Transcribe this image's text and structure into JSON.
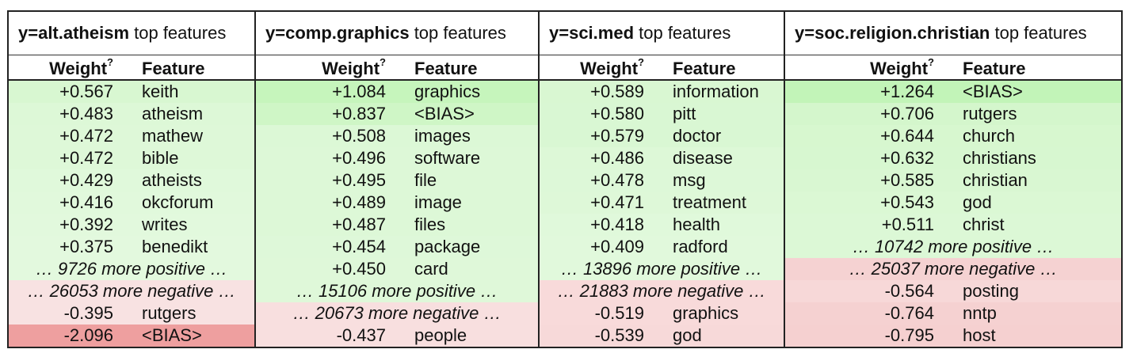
{
  "panels": [
    {
      "title_label": "y=alt.atheism",
      "title_suffix": " top features",
      "header": {
        "weight": "Weight",
        "help": "?",
        "feature": "Feature"
      },
      "rows": [
        {
          "type": "pos",
          "weight": "+0.567",
          "feature": "keith",
          "bg": "#d8f7d1"
        },
        {
          "type": "pos",
          "weight": "+0.483",
          "feature": "atheism",
          "bg": "#ddf8d7"
        },
        {
          "type": "pos",
          "weight": "+0.472",
          "feature": "mathew",
          "bg": "#def8d8"
        },
        {
          "type": "pos",
          "weight": "+0.472",
          "feature": "bible",
          "bg": "#def8d8"
        },
        {
          "type": "pos",
          "weight": "+0.429",
          "feature": "atheists",
          "bg": "#e0f9db"
        },
        {
          "type": "pos",
          "weight": "+0.416",
          "feature": "okcforum",
          "bg": "#e1f9dc"
        },
        {
          "type": "pos",
          "weight": "+0.392",
          "feature": "writes",
          "bg": "#e2f9dd"
        },
        {
          "type": "pos",
          "weight": "+0.375",
          "feature": "benedikt",
          "bg": "#e3f9de"
        },
        {
          "type": "more",
          "text": "… 9726 more positive …",
          "bg": "#e3f9de"
        },
        {
          "type": "more",
          "text": "… 26053 more negative …",
          "bg": "#f8e2e2"
        },
        {
          "type": "neg",
          "weight": "-0.395",
          "feature": "rutgers",
          "bg": "#f8e2e2"
        },
        {
          "type": "neg",
          "weight": "-2.096",
          "feature": "<BIAS>",
          "bg": "#ee9f9f"
        }
      ]
    },
    {
      "title_label": "y=comp.graphics",
      "title_suffix": " top features",
      "header": {
        "weight": "Weight",
        "help": "?",
        "feature": "Feature"
      },
      "rows": [
        {
          "type": "pos",
          "weight": "+1.084",
          "feature": "graphics",
          "bg": "#c6f5bc"
        },
        {
          "type": "pos",
          "weight": "+0.837",
          "feature": "<BIAS>",
          "bg": "#cff6c6"
        },
        {
          "type": "pos",
          "weight": "+0.508",
          "feature": "images",
          "bg": "#dcf8d6"
        },
        {
          "type": "pos",
          "weight": "+0.496",
          "feature": "software",
          "bg": "#ddf8d7"
        },
        {
          "type": "pos",
          "weight": "+0.495",
          "feature": "file",
          "bg": "#ddf8d7"
        },
        {
          "type": "pos",
          "weight": "+0.489",
          "feature": "image",
          "bg": "#ddf8d7"
        },
        {
          "type": "pos",
          "weight": "+0.487",
          "feature": "files",
          "bg": "#ddf8d7"
        },
        {
          "type": "pos",
          "weight": "+0.454",
          "feature": "package",
          "bg": "#def8d9"
        },
        {
          "type": "pos",
          "weight": "+0.450",
          "feature": "card",
          "bg": "#dff8d9"
        },
        {
          "type": "more",
          "text": "… 15106 more positive …",
          "bg": "#dff8d9"
        },
        {
          "type": "more",
          "text": "… 20673 more negative …",
          "bg": "#f8dfdf"
        },
        {
          "type": "neg",
          "weight": "-0.437",
          "feature": "people",
          "bg": "#f8dfdf"
        }
      ]
    },
    {
      "title_label": "y=sci.med",
      "title_suffix": " top features",
      "header": {
        "weight": "Weight",
        "help": "?",
        "feature": "Feature"
      },
      "rows": [
        {
          "type": "pos",
          "weight": "+0.589",
          "feature": "information",
          "bg": "#d9f7d2"
        },
        {
          "type": "pos",
          "weight": "+0.580",
          "feature": "pitt",
          "bg": "#d9f7d3"
        },
        {
          "type": "pos",
          "weight": "+0.579",
          "feature": "doctor",
          "bg": "#d9f7d3"
        },
        {
          "type": "pos",
          "weight": "+0.486",
          "feature": "disease",
          "bg": "#ddf8d7"
        },
        {
          "type": "pos",
          "weight": "+0.478",
          "feature": "msg",
          "bg": "#ddf8d8"
        },
        {
          "type": "pos",
          "weight": "+0.471",
          "feature": "treatment",
          "bg": "#def8d8"
        },
        {
          "type": "pos",
          "weight": "+0.418",
          "feature": "health",
          "bg": "#e0f9db"
        },
        {
          "type": "pos",
          "weight": "+0.409",
          "feature": "radford",
          "bg": "#e1f9dc"
        },
        {
          "type": "more",
          "text": "… 13896 more positive …",
          "bg": "#e1f9dc"
        },
        {
          "type": "more",
          "text": "… 21883 more negative …",
          "bg": "#f8dada"
        },
        {
          "type": "neg",
          "weight": "-0.519",
          "feature": "graphics",
          "bg": "#f8dada"
        },
        {
          "type": "neg",
          "weight": "-0.539",
          "feature": "god",
          "bg": "#f7d9d9"
        }
      ]
    },
    {
      "title_label": "y=soc.religion.christian",
      "title_suffix": " top features",
      "header": {
        "weight": "Weight",
        "help": "?",
        "feature": "Feature"
      },
      "rows": [
        {
          "type": "pos",
          "weight": "+1.264",
          "feature": "<BIAS>",
          "bg": "#c2f4b8"
        },
        {
          "type": "pos",
          "weight": "+0.706",
          "feature": "rutgers",
          "bg": "#d4f6cc"
        },
        {
          "type": "pos",
          "weight": "+0.644",
          "feature": "church",
          "bg": "#d7f7cf"
        },
        {
          "type": "pos",
          "weight": "+0.632",
          "feature": "christians",
          "bg": "#d7f7d0"
        },
        {
          "type": "pos",
          "weight": "+0.585",
          "feature": "christian",
          "bg": "#d9f7d2"
        },
        {
          "type": "pos",
          "weight": "+0.543",
          "feature": "god",
          "bg": "#dbf8d4"
        },
        {
          "type": "pos",
          "weight": "+0.511",
          "feature": "christ",
          "bg": "#dcf8d6"
        },
        {
          "type": "more",
          "text": "… 10742 more positive …",
          "bg": "#dcf8d6"
        },
        {
          "type": "more",
          "text": "… 25037 more negative …",
          "bg": "#f5d2d2"
        },
        {
          "type": "neg",
          "weight": "-0.564",
          "feature": "posting",
          "bg": "#f7d8d8"
        },
        {
          "type": "neg",
          "weight": "-0.764",
          "feature": "nntp",
          "bg": "#f5d1d1"
        },
        {
          "type": "neg",
          "weight": "-0.795",
          "feature": "host",
          "bg": "#f5d0d0"
        }
      ]
    }
  ]
}
